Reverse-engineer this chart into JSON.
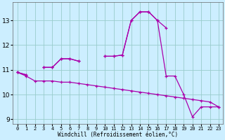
{
  "xlabel": "Windchill (Refroidissement éolien,°C)",
  "x": [
    0,
    1,
    2,
    3,
    4,
    5,
    6,
    7,
    8,
    9,
    10,
    11,
    12,
    13,
    14,
    15,
    16,
    17,
    18,
    19,
    20,
    21,
    22,
    23
  ],
  "line1": [
    10.9,
    10.8,
    null,
    11.1,
    11.1,
    11.45,
    11.45,
    11.35,
    null,
    null,
    11.55,
    11.55,
    11.6,
    13.0,
    13.35,
    13.35,
    13.0,
    12.7,
    null,
    null,
    null,
    null,
    null,
    null
  ],
  "line2": [
    10.9,
    10.8,
    null,
    11.1,
    11.1,
    11.45,
    11.45,
    11.35,
    null,
    null,
    11.55,
    11.55,
    11.6,
    13.0,
    13.35,
    13.35,
    13.0,
    10.75,
    10.75,
    10.0,
    9.1,
    9.5,
    9.5,
    9.5
  ],
  "line3": [
    10.9,
    10.75,
    10.55,
    10.55,
    10.55,
    10.5,
    10.5,
    10.45,
    10.4,
    10.35,
    10.3,
    10.25,
    10.2,
    10.15,
    10.1,
    10.05,
    10.0,
    9.95,
    9.9,
    9.85,
    9.8,
    9.75,
    9.7,
    9.5
  ],
  "line_color": "#aa00aa",
  "bg_color": "#cceeff",
  "grid_color": "#99cccc",
  "ylim": [
    8.8,
    13.75
  ],
  "yticks": [
    9,
    10,
    11,
    12,
    13
  ],
  "xtick_labels": [
    "0",
    "1",
    "2",
    "3",
    "4",
    "5",
    "6",
    "7",
    "8",
    "9",
    "10",
    "11",
    "12",
    "13",
    "14",
    "15",
    "16",
    "17",
    "18",
    "19",
    "20",
    "21",
    "22",
    "23"
  ]
}
